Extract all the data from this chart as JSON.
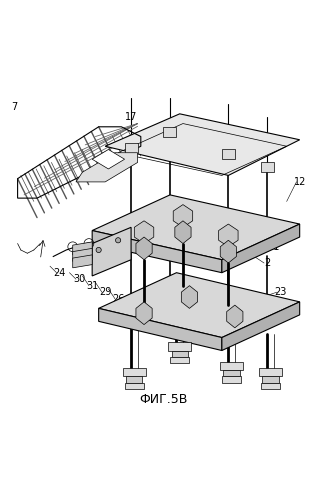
{
  "title": "ФИГ.5В",
  "bg_color": "#ffffff",
  "line_color": "#000000",
  "gray_light": "#cccccc",
  "gray_mid": "#888888",
  "gray_dark": "#444444"
}
